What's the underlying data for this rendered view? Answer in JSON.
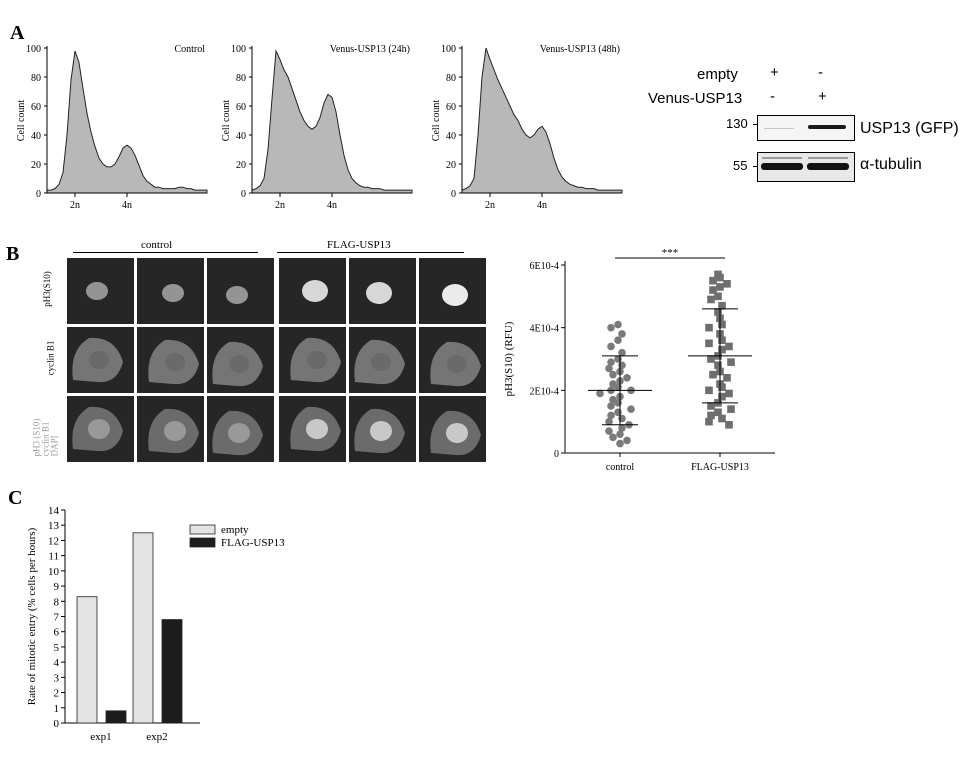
{
  "figure": {
    "panel_a": "A",
    "panel_b": "B",
    "panel_c": "C"
  },
  "histograms": {
    "y_axis_label": "Cell count",
    "y_ticks": [
      "0",
      "20",
      "40",
      "60",
      "80",
      "100"
    ],
    "x_ticks": [
      "2n",
      "4n"
    ],
    "fill_color": "#b8b8b8",
    "panels": [
      {
        "title": "Control"
      },
      {
        "title": "Venus-USP13 (24h)"
      },
      {
        "title": "Venus-USP13 (48h)"
      }
    ]
  },
  "western_blot": {
    "row_empty": "empty",
    "row_venus": "Venus-USP13",
    "empty_signs": [
      "+",
      "-"
    ],
    "venus_signs": [
      "-",
      "+"
    ],
    "marker_130": "130",
    "marker_55": "55",
    "band_top_label": "USP13 (GFP)",
    "band_bottom_label": "α-tubulin"
  },
  "microscopy": {
    "group_control": "control",
    "group_flag": "FLAG-USP13",
    "row_labels": [
      "pH3(S10)",
      "cyclin B1"
    ],
    "merge_label_line1": "pH3 (S10)",
    "merge_label_line2": "cyclin B1",
    "merge_label_line3": "DAPI"
  },
  "chart_data": [
    {
      "type": "histogram",
      "title": "Control",
      "ylabel": "Cell count",
      "ylim": [
        0,
        100
      ],
      "x_ticks": [
        "2n",
        "4n"
      ],
      "profile": [
        2,
        2,
        3,
        6,
        14,
        40,
        78,
        98,
        90,
        72,
        55,
        42,
        32,
        24,
        20,
        18,
        18,
        20,
        25,
        31,
        33,
        31,
        26,
        19,
        12,
        8,
        6,
        4,
        4,
        3,
        3,
        3,
        3,
        4,
        4,
        3,
        3,
        2,
        2,
        2,
        2
      ]
    },
    {
      "type": "histogram",
      "title": "Venus-USP13 (24h)",
      "ylabel": "Cell count",
      "ylim": [
        0,
        100
      ],
      "x_ticks": [
        "2n",
        "4n"
      ],
      "profile": [
        2,
        3,
        5,
        10,
        30,
        65,
        98,
        92,
        85,
        80,
        72,
        64,
        56,
        50,
        46,
        44,
        46,
        52,
        62,
        68,
        66,
        56,
        40,
        26,
        16,
        10,
        7,
        5,
        4,
        4,
        3,
        3,
        3,
        2,
        2,
        2,
        2,
        2,
        2,
        2,
        2
      ]
    },
    {
      "type": "histogram",
      "title": "Venus-USP13 (48h)",
      "ylabel": "Cell count",
      "ylim": [
        0,
        100
      ],
      "x_ticks": [
        "2n",
        "4n"
      ],
      "profile": [
        2,
        3,
        5,
        10,
        40,
        80,
        100,
        92,
        85,
        78,
        72,
        66,
        60,
        54,
        50,
        44,
        40,
        38,
        40,
        44,
        46,
        42,
        34,
        24,
        16,
        11,
        8,
        6,
        5,
        4,
        4,
        3,
        3,
        3,
        2,
        2,
        2,
        2,
        2,
        2,
        2
      ]
    },
    {
      "type": "scatter",
      "ylabel": "pH3(S10) (RFU)",
      "y_ticks": [
        "0",
        "2E10-4",
        "4E10-4",
        "6E10-4"
      ],
      "ylim": [
        0,
        0.0006
      ],
      "categories": [
        "control",
        "FLAG-USP13"
      ],
      "significance": "***",
      "series": [
        {
          "name": "control",
          "marker": "circle",
          "mean": 0.0002,
          "sd": 0.00011,
          "values": [
            0.00041,
            0.0004,
            0.00038,
            0.00036,
            0.00034,
            0.00032,
            0.0003,
            0.00029,
            0.00028,
            0.00027,
            0.00026,
            0.00025,
            0.00024,
            0.00023,
            0.00022,
            0.00021,
            0.0002,
            0.0002,
            0.00019,
            0.00018,
            0.00017,
            0.00016,
            0.00015,
            0.00014,
            0.00013,
            0.00012,
            0.00011,
            0.0001,
            9e-05,
            8e-05,
            7e-05,
            6e-05,
            5e-05,
            4e-05,
            3e-05
          ]
        },
        {
          "name": "FLAG-USP13",
          "marker": "square",
          "mean": 0.00031,
          "sd": 0.00015,
          "values": [
            0.00057,
            0.00056,
            0.00055,
            0.00054,
            0.00053,
            0.00052,
            0.0005,
            0.00049,
            0.00047,
            0.00045,
            0.00043,
            0.00041,
            0.0004,
            0.00038,
            0.00036,
            0.00035,
            0.00034,
            0.00033,
            0.00031,
            0.0003,
            0.00029,
            0.00028,
            0.00026,
            0.00025,
            0.00024,
            0.00022,
            0.00021,
            0.0002,
            0.00019,
            0.00018,
            0.00016,
            0.00015,
            0.00014,
            0.00013,
            0.00012,
            0.00011,
            0.0001,
            9e-05
          ]
        }
      ]
    },
    {
      "type": "bar",
      "ylabel": "Rate of mitotic entry (% cells per hours)",
      "ylim": [
        0,
        14
      ],
      "y_ticks": [
        "0",
        "1",
        "2",
        "3",
        "4",
        "5",
        "6",
        "7",
        "8",
        "9",
        "10",
        "11",
        "12",
        "13",
        "14"
      ],
      "categories": [
        "exp1",
        "exp2"
      ],
      "legend": "top-right",
      "series": [
        {
          "name": "empty",
          "color": "#e3e3e3",
          "values": [
            8.3,
            12.5
          ]
        },
        {
          "name": "FLAG-USP13",
          "color": "#1c1c1c",
          "values": [
            0.8,
            6.8
          ]
        }
      ]
    }
  ]
}
